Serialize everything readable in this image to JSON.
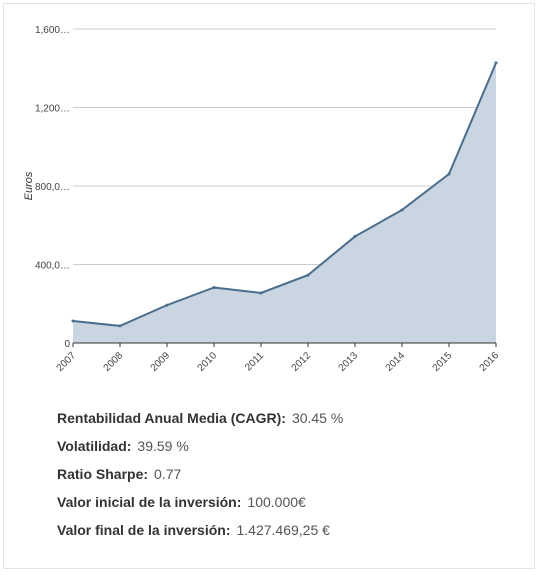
{
  "chart_data": {
    "type": "area",
    "x": [
      "2007",
      "2008",
      "2009",
      "2010",
      "2011",
      "2012",
      "2013",
      "2014",
      "2015",
      "2016"
    ],
    "series": [
      {
        "values": [
          112000,
          87000,
          193000,
          283000,
          255000,
          346000,
          543000,
          678000,
          861000,
          1427469.25
        ]
      }
    ],
    "ylabel": "Euros",
    "ylim": [
      0,
      1600000
    ],
    "yticks": [
      0,
      400000,
      800000,
      1200000,
      1600000
    ],
    "ytick_labels": [
      "0",
      "400,0…",
      "800,0…",
      "1,200…",
      "1,600…"
    ],
    "grid": true,
    "colors": {
      "line": "#4a6d8c",
      "fill": "#c9d5e1",
      "grid": "#cccccc",
      "axis": "#333333"
    }
  },
  "stats": [
    {
      "label": "Rentabilidad Anual Media (CAGR):",
      "value": "30.45 %"
    },
    {
      "label": "Volatilidad:",
      "value": "39.59 %"
    },
    {
      "label": "Ratio Sharpe:",
      "value": "0.77"
    },
    {
      "label": "Valor inicial de la inversión:",
      "value": "100.000€"
    },
    {
      "label": "Valor final de la inversión:",
      "value": "1.427.469,25 €"
    }
  ]
}
